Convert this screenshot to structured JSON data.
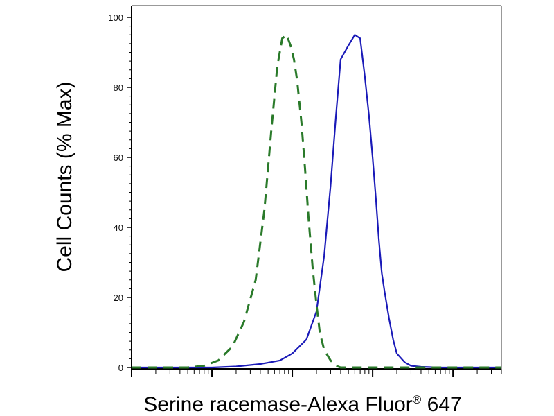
{
  "chart_data": {
    "type": "line",
    "title": "",
    "xlabel": "Serine racemase-Alexa Fluor",
    "xlabel_superscript": "®",
    "xlabel_suffix": " 647",
    "ylabel": "Cell Counts (% Max)",
    "x_scale": "log",
    "xlim": [
      10,
      400000
    ],
    "ylim": [
      0,
      100
    ],
    "yticks": [
      0,
      20,
      40,
      60,
      80,
      100
    ],
    "ytick_labels": [
      "0",
      "20",
      "40",
      "60",
      "80",
      "100"
    ],
    "grid": false,
    "legend": false,
    "series": [
      {
        "color": "#1a1ab8",
        "dash": "solid",
        "x": [
          10,
          100,
          200,
          400,
          700,
          1000,
          1500,
          2000,
          2500,
          3000,
          3500,
          4000,
          5000,
          6000,
          7000,
          8000,
          9000,
          10000,
          11000,
          12000,
          13000,
          14000,
          16000,
          18000,
          20000,
          25000,
          30000,
          40000,
          70000,
          400000
        ],
        "y": [
          0,
          0,
          0.3,
          1,
          2,
          4,
          8,
          16,
          32,
          52,
          72,
          88,
          92,
          95,
          94,
          83,
          72,
          60,
          48,
          36,
          27,
          22,
          14,
          8,
          4,
          1.5,
          0.5,
          0.2,
          0,
          0
        ]
      },
      {
        "color": "#2a7a2a",
        "dash": "dashed",
        "x": [
          10,
          50,
          80,
          120,
          180,
          250,
          350,
          450,
          550,
          650,
          750,
          850,
          950,
          1050,
          1150,
          1300,
          1450,
          1600,
          1800,
          2000,
          2200,
          2500,
          3000,
          3500,
          4000,
          5000,
          7000,
          400000
        ],
        "y": [
          0,
          0,
          0.5,
          2,
          6,
          13,
          25,
          45,
          68,
          86,
          94,
          95,
          92,
          88,
          82,
          70,
          56,
          42,
          28,
          18,
          10,
          5,
          2,
          0.5,
          0,
          0,
          0,
          0
        ]
      }
    ]
  }
}
